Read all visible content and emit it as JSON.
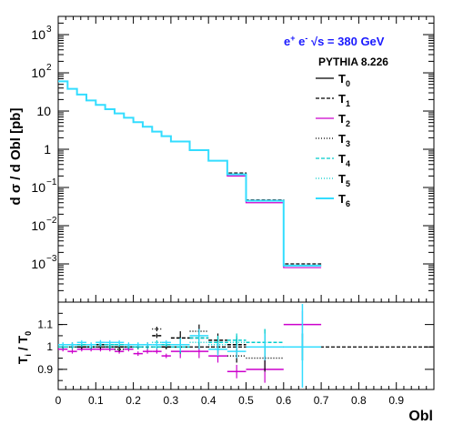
{
  "chart_data": [
    {
      "type": "line",
      "step": true,
      "y_scale": "log",
      "ylabel": "d σ / d Obl [pb]",
      "xlim": [
        0,
        1
      ],
      "ylim": [
        0.0001,
        3000
      ],
      "y_ticks": [
        {
          "v": 0.001,
          "base": "10",
          "exp": "−3"
        },
        {
          "v": 0.01,
          "base": "10",
          "exp": "−2"
        },
        {
          "v": 0.1,
          "base": "10",
          "exp": "−1"
        },
        {
          "v": 1,
          "base": "1",
          "exp": ""
        },
        {
          "v": 10,
          "base": "10",
          "exp": ""
        },
        {
          "v": 100,
          "base": "10",
          "exp": "2"
        },
        {
          "v": 1000,
          "base": "10",
          "exp": "3"
        }
      ],
      "title_line1": {
        "a": "e",
        "a_sup": "+",
        "b": " e",
        "b_sup": "-",
        "c": "  √s = 380 GeV"
      },
      "subtitle": "PYTHIA 8.226",
      "legend_position": "top-right",
      "series": [
        {
          "name": "T",
          "sub": "0",
          "color": "#000000",
          "dash": ""
        },
        {
          "name": "T",
          "sub": "1",
          "color": "#000000",
          "dash": "4,2"
        },
        {
          "name": "T",
          "sub": "2",
          "color": "#cc00cc",
          "dash": ""
        },
        {
          "name": "T",
          "sub": "3",
          "color": "#000000",
          "dash": "1,2"
        },
        {
          "name": "T",
          "sub": "4",
          "color": "#00cccc",
          "dash": "4,2"
        },
        {
          "name": "T",
          "sub": "5",
          "color": "#00cccc",
          "dash": "1,2"
        },
        {
          "name": "T",
          "sub": "6",
          "color": "#33ddff",
          "dash": ""
        }
      ],
      "x_edges": [
        0,
        0.025,
        0.05,
        0.075,
        0.1,
        0.125,
        0.15,
        0.175,
        0.2,
        0.225,
        0.25,
        0.275,
        0.3,
        0.35,
        0.4,
        0.45,
        0.5,
        0.6,
        0.7
      ],
      "values": [
        60,
        38,
        27,
        19,
        14.5,
        11.2,
        8.7,
        6.7,
        5.1,
        3.9,
        2.9,
        2.2,
        1.6,
        0.95,
        0.5,
        0.22,
        0.045,
        0.0009,
        0.0001
      ],
      "values_alt": {
        "T1": {
          "15": 0.24,
          "16": 0.047,
          "17": 0.001
        },
        "T2": {
          "15": 0.2,
          "16": 0.04,
          "17": 0.0008
        }
      }
    },
    {
      "type": "scatter",
      "ylabel": "T",
      "ylabel_sub": "i",
      "ylabel_rest": " / T",
      "ylabel_sub2": "0",
      "xlabel": "Obl",
      "xlim": [
        0,
        1
      ],
      "ylim": [
        0.81,
        1.2
      ],
      "y_ticks": [
        0.9,
        1,
        1.1
      ],
      "x_ticks": [
        0,
        0.1,
        0.2,
        0.3,
        0.4,
        0.5,
        0.6,
        0.7,
        0.8,
        0.9
      ],
      "x_tick_labels": [
        "0",
        "0.1",
        "0.2",
        "0.3",
        "0.4",
        "0.5",
        "0.6",
        "0.7",
        "0.8",
        "0.9"
      ],
      "y_tick_labels": [
        "0.9",
        "1",
        "1.1"
      ],
      "reference": 1,
      "series": [
        {
          "sub": "1",
          "points": [
            [
              0.0125,
              1.0
            ],
            [
              0.0375,
              1.01
            ],
            [
              0.0625,
              1.0
            ],
            [
              0.0875,
              1.0
            ],
            [
              0.1125,
              1.01
            ],
            [
              0.1375,
              1.0
            ],
            [
              0.1625,
              1.0
            ],
            [
              0.1875,
              1.0
            ],
            [
              0.2125,
              1.0
            ],
            [
              0.2375,
              1.01
            ],
            [
              0.2625,
              1.05
            ],
            [
              0.2875,
              1.0
            ],
            [
              0.325,
              1.04
            ],
            [
              0.375,
              1.04
            ],
            [
              0.425,
              1.03
            ],
            [
              0.475,
              1.01
            ],
            [
              0.55,
              1.0
            ],
            [
              0.65,
              1.0
            ]
          ]
        },
        {
          "sub": "2",
          "points": [
            [
              0.0125,
              0.99
            ],
            [
              0.0375,
              0.98
            ],
            [
              0.0625,
              0.99
            ],
            [
              0.0875,
              0.99
            ],
            [
              0.1125,
              0.99
            ],
            [
              0.1375,
              0.99
            ],
            [
              0.1625,
              0.98
            ],
            [
              0.1875,
              0.99
            ],
            [
              0.2125,
              0.97
            ],
            [
              0.2375,
              0.98
            ],
            [
              0.2625,
              0.98
            ],
            [
              0.2875,
              0.96
            ],
            [
              0.325,
              0.98
            ],
            [
              0.375,
              0.98
            ],
            [
              0.425,
              0.96
            ],
            [
              0.475,
              0.89
            ],
            [
              0.55,
              0.9
            ],
            [
              0.65,
              1.1
            ]
          ]
        },
        {
          "sub": "3",
          "points": [
            [
              0.0125,
              1.0
            ],
            [
              0.0375,
              1.0
            ],
            [
              0.0625,
              1.0
            ],
            [
              0.0875,
              1.0
            ],
            [
              0.1125,
              1.0
            ],
            [
              0.1375,
              1.0
            ],
            [
              0.1625,
              0.99
            ],
            [
              0.1875,
              1.0
            ],
            [
              0.2125,
              1.0
            ],
            [
              0.2375,
              1.0
            ],
            [
              0.2625,
              1.08
            ],
            [
              0.2875,
              1.0
            ],
            [
              0.325,
              1.0
            ],
            [
              0.375,
              1.07
            ],
            [
              0.425,
              1.0
            ],
            [
              0.475,
              0.96
            ],
            [
              0.55,
              0.95
            ],
            [
              0.65,
              1.0
            ]
          ]
        },
        {
          "sub": "4",
          "points": [
            [
              0.0125,
              1.0
            ],
            [
              0.0375,
              1.01
            ],
            [
              0.0625,
              1.01
            ],
            [
              0.0875,
              1.01
            ],
            [
              0.1125,
              1.02
            ],
            [
              0.1375,
              1.01
            ],
            [
              0.1625,
              1.01
            ],
            [
              0.1875,
              1.01
            ],
            [
              0.2125,
              1.0
            ],
            [
              0.2375,
              1.01
            ],
            [
              0.2625,
              1.0
            ],
            [
              0.2875,
              1.01
            ],
            [
              0.325,
              1.0
            ],
            [
              0.375,
              1.04
            ],
            [
              0.425,
              1.02
            ],
            [
              0.475,
              1.03
            ],
            [
              0.55,
              1.02
            ],
            [
              0.65,
              1.0
            ]
          ]
        },
        {
          "sub": "5",
          "points": [
            [
              0.0125,
              1.01
            ],
            [
              0.0375,
              1.0
            ],
            [
              0.0625,
              1.01
            ],
            [
              0.0875,
              1.0
            ],
            [
              0.1125,
              1.01
            ],
            [
              0.1375,
              1.0
            ],
            [
              0.1625,
              1.01
            ],
            [
              0.1875,
              1.0
            ],
            [
              0.2125,
              1.01
            ],
            [
              0.2375,
              1.0
            ],
            [
              0.2625,
              1.02
            ],
            [
              0.2875,
              1.01
            ],
            [
              0.325,
              1.01
            ],
            [
              0.375,
              1.02
            ],
            [
              0.425,
              1.01
            ],
            [
              0.475,
              1.02
            ],
            [
              0.55,
              1.02
            ],
            [
              0.65,
              1.0
            ]
          ]
        },
        {
          "sub": "6",
          "points": [
            [
              0.0125,
              1.01
            ],
            [
              0.0375,
              1.01
            ],
            [
              0.0625,
              1.02
            ],
            [
              0.0875,
              1.01
            ],
            [
              0.1125,
              1.02
            ],
            [
              0.1375,
              1.02
            ],
            [
              0.1625,
              1.02
            ],
            [
              0.1875,
              1.01
            ],
            [
              0.2125,
              1.01
            ],
            [
              0.2375,
              1.01
            ],
            [
              0.2625,
              1.01
            ],
            [
              0.2875,
              1.02
            ],
            [
              0.325,
              1.01
            ],
            [
              0.375,
              1.05
            ],
            [
              0.425,
              0.99
            ],
            [
              0.475,
              0.98
            ],
            [
              0.55,
              1.0
            ],
            [
              0.65,
              1.0
            ]
          ]
        }
      ]
    }
  ]
}
